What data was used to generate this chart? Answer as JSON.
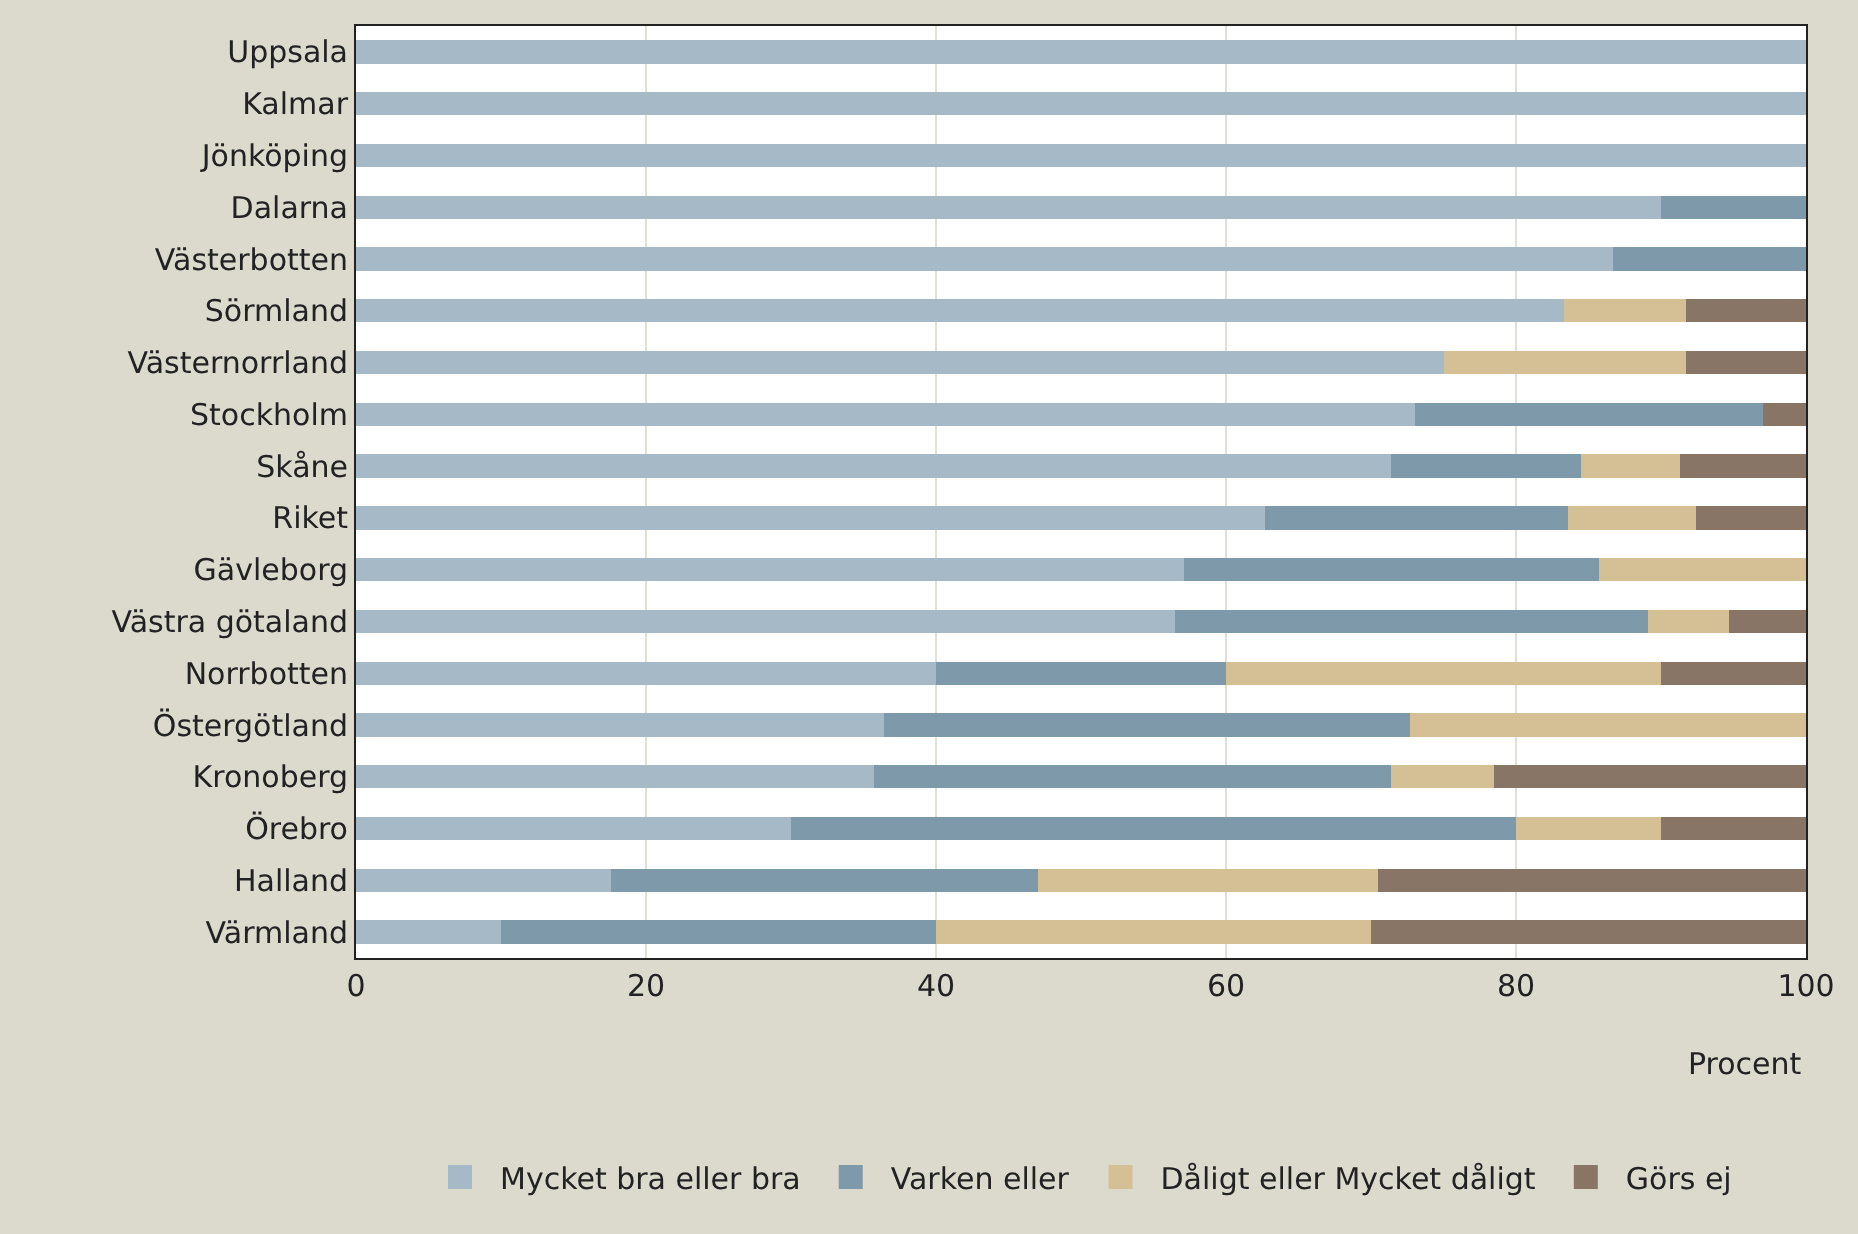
{
  "chart_data": {
    "type": "bar",
    "orientation": "horizontal",
    "stacked": true,
    "xlabel": "Procent",
    "categories": [
      "Uppsala",
      "Kalmar",
      "Jönköping",
      "Dalarna",
      "Västerbotten",
      "Sörmland",
      "Västernorrland",
      "Stockholm",
      "Skåne",
      "Riket",
      "Gävleborg",
      "Västra götaland",
      "Norrbotten",
      "Östergötland",
      "Kronoberg",
      "Örebro",
      "Halland",
      "Värmland"
    ],
    "series": [
      {
        "name": "Mycket bra eller bra",
        "color": "#a5bac6",
        "values": [
          100,
          100,
          100,
          90,
          86.7,
          83.3,
          75,
          73,
          71.4,
          62.7,
          57.1,
          56.5,
          40,
          36.4,
          35.7,
          30,
          17.6,
          10
        ]
      },
      {
        "name": "Varken eller",
        "color": "#7d99aa",
        "values": [
          0,
          0,
          0,
          10,
          13.3,
          0,
          0,
          24,
          13.1,
          20.9,
          28.6,
          32.6,
          20,
          36.3,
          35.7,
          50,
          29.4,
          30
        ]
      },
      {
        "name": "Dåligt eller Mycket dåligt",
        "color": "#d5bf94",
        "values": [
          0,
          0,
          0,
          0,
          0,
          8.4,
          16.7,
          0,
          6.8,
          8.8,
          14.3,
          5.6,
          30,
          27.3,
          7.1,
          10,
          23.5,
          30
        ]
      },
      {
        "name": "Görs ej",
        "color": "#887565",
        "values": [
          0,
          0,
          0,
          0,
          0,
          8.3,
          8.3,
          3,
          8.7,
          7.6,
          0,
          5.3,
          10,
          0,
          21.5,
          10,
          29.5,
          30
        ]
      }
    ],
    "xlim": [
      0,
      100
    ],
    "xticks": [
      0,
      20,
      40,
      60,
      80,
      100
    ],
    "grid": "x",
    "legend": "bottom"
  }
}
